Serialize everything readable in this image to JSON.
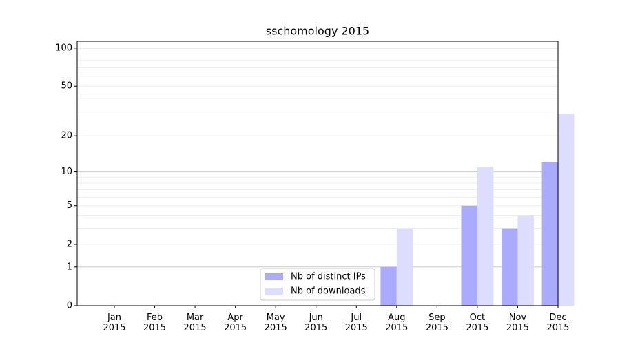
{
  "chart_data": {
    "type": "bar",
    "title": "sschomology 2015",
    "categories": [
      "Jan\n2015",
      "Feb\n2015",
      "Mar\n2015",
      "Apr\n2015",
      "May\n2015",
      "Jun\n2015",
      "Jul\n2015",
      "Aug\n2015",
      "Sep\n2015",
      "Oct\n2015",
      "Nov\n2015",
      "Dec\n2015"
    ],
    "series": [
      {
        "name": "Nb of distinct IPs",
        "color": "#aaaaff",
        "values": [
          0,
          0,
          0,
          0,
          0,
          0,
          0,
          1,
          0,
          5,
          3,
          12
        ]
      },
      {
        "name": "Nb of downloads",
        "color": "#ddddff",
        "values": [
          0,
          0,
          0,
          0,
          0,
          0,
          0,
          3,
          0,
          11,
          4,
          30
        ]
      }
    ],
    "yscale": "log1p",
    "ylim": [
      0,
      113
    ],
    "yticks": [
      0,
      1,
      2,
      5,
      10,
      20,
      50,
      100
    ],
    "grid": true,
    "legend": "lower center"
  }
}
